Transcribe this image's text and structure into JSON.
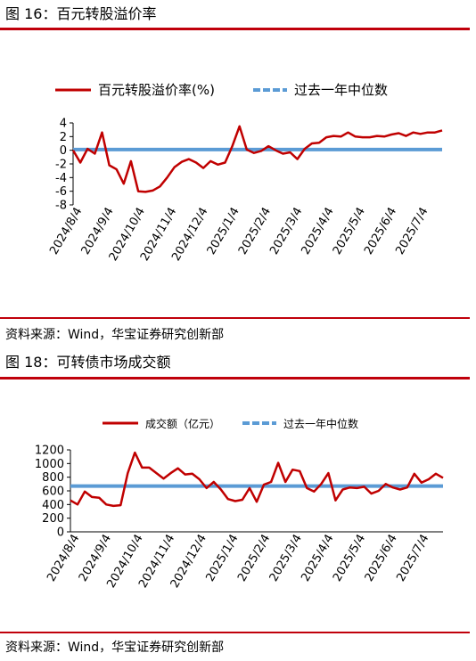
{
  "colors": {
    "red": "#c00000",
    "blue": "#5b9bd5",
    "rule": "#c0000b",
    "axis": "#000000"
  },
  "dates": [
    "2024/8/4",
    "2024/9/4",
    "2024/10/4",
    "2024/11/4",
    "2024/12/4",
    "2025/1/4",
    "2025/2/4",
    "2025/3/4",
    "2025/4/4",
    "2025/5/4",
    "2025/6/4",
    "2025/7/4"
  ],
  "figures": [
    {
      "title": "图 16：百元转股溢价率",
      "source": "资料来源：Wind，华宝证券研究创新部",
      "chart_data": {
        "type": "line",
        "legend_position": "top",
        "x_tick_labels": [
          "2024/8/4",
          "2024/9/4",
          "2024/10/4",
          "2024/11/4",
          "2024/12/4",
          "2025/1/4",
          "2025/2/4",
          "2025/3/4",
          "2025/4/4",
          "2025/5/4",
          "2025/6/4",
          "2025/7/4"
        ],
        "ylim": [
          -8,
          4
        ],
        "y_ticks": [
          4,
          2,
          0,
          -2,
          -4,
          -6,
          -8
        ],
        "series": [
          {
            "name": "百元转股溢价率(%)",
            "color": "#c00000",
            "values": [
              0.0,
              -1.8,
              0.2,
              -0.5,
              2.6,
              -2.2,
              -2.8,
              -4.9,
              -1.6,
              -6.0,
              -6.1,
              -5.9,
              -5.3,
              -4.0,
              -2.5,
              -1.7,
              -1.3,
              -1.8,
              -2.6,
              -1.6,
              -2.1,
              -1.8,
              0.6,
              3.5,
              0.1,
              -0.4,
              -0.1,
              0.6,
              0.0,
              -0.5,
              -0.3,
              -1.3,
              0.2,
              1.0,
              1.1,
              1.9,
              2.1,
              2.0,
              2.6,
              2.0,
              1.9,
              1.9,
              2.1,
              2.0,
              2.3,
              2.5,
              2.1,
              2.6,
              2.4,
              2.6,
              2.6,
              2.9
            ]
          },
          {
            "name": "过去一年中位数",
            "color": "#5b9bd5",
            "dashed": true,
            "constant": 0.1
          }
        ]
      }
    },
    {
      "title": "图 18：可转债市场成交额",
      "source": "资料来源：Wind，华宝证券研究创新部",
      "chart_data": {
        "type": "line",
        "legend_position": "top",
        "x_tick_labels": [
          "2024/8/4",
          "2024/9/4",
          "2024/10/4",
          "2024/11/4",
          "2024/12/4",
          "2025/1/4",
          "2025/2/4",
          "2025/3/4",
          "2025/4/4",
          "2025/5/4",
          "2025/6/4",
          "2025/7/4"
        ],
        "ylim": [
          0,
          1200
        ],
        "y_ticks": [
          1200,
          1000,
          800,
          600,
          400,
          200,
          0
        ],
        "series": [
          {
            "name": "成交额（亿元）",
            "color": "#c00000",
            "values": [
              460,
              400,
              590,
              510,
              500,
              400,
              380,
              390,
              860,
              1160,
              940,
              940,
              860,
              780,
              860,
              930,
              840,
              850,
              770,
              640,
              730,
              620,
              480,
              450,
              470,
              640,
              440,
              690,
              730,
              1010,
              730,
              910,
              890,
              640,
              590,
              700,
              860,
              460,
              620,
              650,
              640,
              660,
              560,
              600,
              700,
              650,
              620,
              650,
              850,
              720,
              770,
              850,
              790
            ]
          },
          {
            "name": "过去一年中位数",
            "color": "#5b9bd5",
            "dashed": true,
            "constant": 670
          }
        ]
      }
    }
  ]
}
